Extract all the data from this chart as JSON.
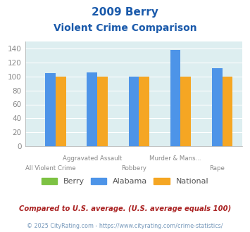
{
  "title_line1": "2009 Berry",
  "title_line2": "Violent Crime Comparison",
  "category_line1": [
    "",
    "Aggravated Assault",
    "",
    "Murder & Mans...",
    ""
  ],
  "category_line2": [
    "All Violent Crime",
    "",
    "Robbery",
    "",
    "Rape"
  ],
  "berry": [
    0,
    0,
    0,
    0,
    0
  ],
  "alabama": [
    105,
    106,
    100,
    138,
    112
  ],
  "national": [
    100,
    100,
    100,
    100,
    100
  ],
  "bar_colors": {
    "berry": "#7dc243",
    "alabama": "#4d94e8",
    "national": "#f5a623"
  },
  "ylim": [
    0,
    150
  ],
  "yticks": [
    0,
    20,
    40,
    60,
    80,
    100,
    120,
    140
  ],
  "bg_color": "#ddeef0",
  "title_color": "#1a5aab",
  "tick_color": "#888888",
  "legend_labels": [
    "Berry",
    "Alabama",
    "National"
  ],
  "footnote1": "Compared to U.S. average. (U.S. average equals 100)",
  "footnote2": "© 2025 CityRating.com - https://www.cityrating.com/crime-statistics/",
  "footnote1_color": "#aa2222",
  "footnote2_color": "#7799bb",
  "bar_width": 0.25
}
